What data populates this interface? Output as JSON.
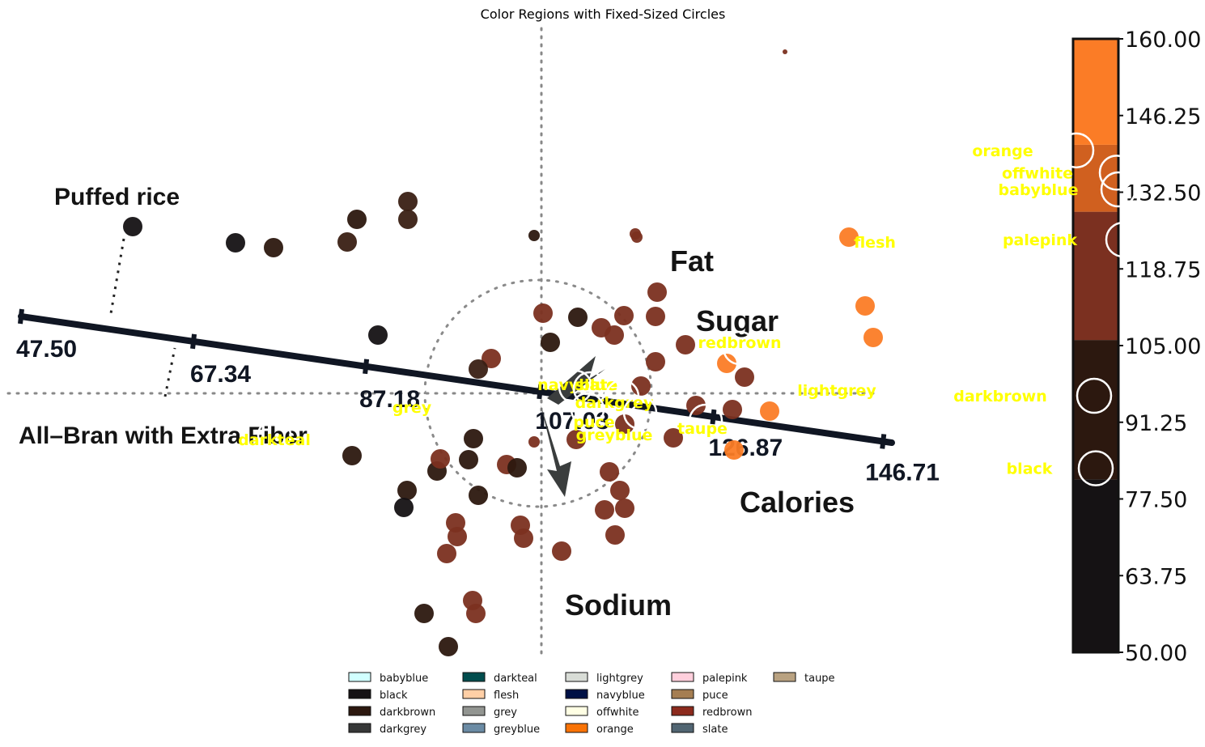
{
  "chart_data": {
    "type": "scatter",
    "title": "Color Regions with Fixed-Sized Circles",
    "background_image": {
      "description_labels": {
        "points": [
          "Puffed rice",
          "All–Bran with Extra Fiber"
        ],
        "variables": [
          "Fat",
          "Sugar",
          "Calories",
          "Sodium"
        ]
      },
      "calibrated_axis_ticks": [
        "47.50",
        "67.34",
        "87.18",
        "107.03",
        "126.87",
        "146.71"
      ],
      "colorbar": {
        "ticks": [
          "160.00",
          "146.25",
          "132.50",
          "118.75",
          "105.00",
          "91.25",
          "77.50",
          "63.75",
          "50.00"
        ],
        "range": [
          50,
          160
        ],
        "bands": [
          {
            "from": 50,
            "to": 81,
            "color": "#151214"
          },
          {
            "from": 81,
            "to": 106,
            "color": "#2c180f"
          },
          {
            "from": 106,
            "to": 129,
            "color": "#7b3020"
          },
          {
            "from": 129,
            "to": 141,
            "color": "#d0601f"
          },
          {
            "from": 141,
            "to": 160,
            "color": "#fb7c26"
          }
        ]
      },
      "colorbar_markers": [
        {
          "label": "orange",
          "value": 140
        },
        {
          "label": "offwhite",
          "value": 136
        },
        {
          "label": "babyblue",
          "value": 133
        },
        {
          "label": "palepink",
          "value": 124
        },
        {
          "label": "darkbrown",
          "value": 96
        },
        {
          "label": "black",
          "value": 83
        }
      ]
    },
    "scatter_points": [
      {
        "x": -505,
        "y": 206,
        "color": "#151214"
      },
      {
        "x": -378,
        "y": 186,
        "color": "#151214"
      },
      {
        "x": -331,
        "y": 180,
        "color": "#2c180f"
      },
      {
        "x": -228,
        "y": 215,
        "color": "#2c180f"
      },
      {
        "x": -240,
        "y": 187,
        "color": "#3a2014"
      },
      {
        "x": -165,
        "y": 237,
        "color": "#3a2014"
      },
      {
        "x": -165,
        "y": 215,
        "color": "#3a2014"
      },
      {
        "x": -9,
        "y": 195,
        "color": "#2c180f"
      },
      {
        "x": 116,
        "y": 197,
        "color": "#7b3020"
      },
      {
        "x": 118,
        "y": 193,
        "color": "#7b3020"
      },
      {
        "x": 143,
        "y": 125,
        "color": "#7b3020"
      },
      {
        "x": 380,
        "y": 193,
        "color": "#fb7c26"
      },
      {
        "x": 400,
        "y": 108,
        "color": "#fb7c26"
      },
      {
        "x": 410,
        "y": 69,
        "color": "#fb7c26"
      },
      {
        "x": -202,
        "y": 72,
        "color": "#151214"
      },
      {
        "x": 2,
        "y": 99,
        "color": "#7b3020"
      },
      {
        "x": 45,
        "y": 94,
        "color": "#2c180f"
      },
      {
        "x": 74,
        "y": 81,
        "color": "#7b3020"
      },
      {
        "x": 90,
        "y": 72,
        "color": "#7b3020"
      },
      {
        "x": 102,
        "y": 96,
        "color": "#7b3020"
      },
      {
        "x": 11,
        "y": 63,
        "color": "#2c180f"
      },
      {
        "x": -62,
        "y": 43,
        "color": "#7b3020"
      },
      {
        "x": -78,
        "y": 30,
        "color": "#3a2014"
      },
      {
        "x": 141,
        "y": 39,
        "color": "#7b3020"
      },
      {
        "x": 178,
        "y": 60,
        "color": "#7b3020"
      },
      {
        "x": 229,
        "y": 37,
        "color": "#fb7c26"
      },
      {
        "x": 251,
        "y": 20,
        "color": "#7b3020"
      },
      {
        "x": 123,
        "y": 9,
        "color": "#7b3020"
      },
      {
        "x": 191,
        "y": -15,
        "color": "#7b3020"
      },
      {
        "x": 236,
        "y": -20,
        "color": "#7b3020"
      },
      {
        "x": 282,
        "y": -22,
        "color": "#fb7c26"
      },
      {
        "x": 103,
        "y": -38,
        "color": "#7b3020"
      },
      {
        "x": 43,
        "y": -57,
        "color": "#7b3020"
      },
      {
        "x": 163,
        "y": -55,
        "color": "#7b3020"
      },
      {
        "x": 238,
        "y": -70,
        "color": "#fb7c26"
      },
      {
        "x": -84,
        "y": -56,
        "color": "#2c180f"
      },
      {
        "x": -90,
        "y": -82,
        "color": "#2c180f"
      },
      {
        "x": -234,
        "y": -77,
        "color": "#2c180f"
      },
      {
        "x": -129,
        "y": -96,
        "color": "#2c180f"
      },
      {
        "x": -43,
        "y": -88,
        "color": "#7b3020"
      },
      {
        "x": -30,
        "y": -92,
        "color": "#2c180f"
      },
      {
        "x": -125,
        "y": -81,
        "color": "#7b3020"
      },
      {
        "x": -166,
        "y": -120,
        "color": "#2c180f"
      },
      {
        "x": -170,
        "y": -141,
        "color": "#151214"
      },
      {
        "x": -78,
        "y": -126,
        "color": "#2c180f"
      },
      {
        "x": 97,
        "y": -120,
        "color": "#7b3020"
      },
      {
        "x": 103,
        "y": -142,
        "color": "#7b3020"
      },
      {
        "x": 78,
        "y": -144,
        "color": "#7b3020"
      },
      {
        "x": 91,
        "y": -175,
        "color": "#7b3020"
      },
      {
        "x": -106,
        "y": -160,
        "color": "#7b3020"
      },
      {
        "x": -104,
        "y": -177,
        "color": "#7b3020"
      },
      {
        "x": -26,
        "y": -163,
        "color": "#7b3020"
      },
      {
        "x": -22,
        "y": -179,
        "color": "#7b3020"
      },
      {
        "x": -117,
        "y": -198,
        "color": "#7b3020"
      },
      {
        "x": 25,
        "y": -195,
        "color": "#7b3020"
      },
      {
        "x": -145,
        "y": -272,
        "color": "#2c180f"
      },
      {
        "x": -85,
        "y": -256,
        "color": "#7b3020"
      },
      {
        "x": -81,
        "y": -272,
        "color": "#7b3020"
      },
      {
        "x": -115,
        "y": -313,
        "color": "#2c180f"
      },
      {
        "x": 301,
        "y": 422,
        "color": "#7b3020"
      },
      {
        "x": -9,
        "y": -60,
        "color": "#7b3020"
      },
      {
        "x": 141,
        "y": 95,
        "color": "#7b3020"
      },
      {
        "x": 84,
        "y": -97,
        "color": "#7b3020"
      }
    ],
    "region_markers": [
      {
        "label": "navyblue",
        "x": 42,
        "y": 8
      },
      {
        "label": "slate",
        "x": 60,
        "y": 6
      },
      {
        "label": "darkgrey",
        "x": 100,
        "y": -4
      },
      {
        "label": "puce",
        "x": 57,
        "y": -20
      },
      {
        "label": "greyblue",
        "x": 122,
        "y": -24
      },
      {
        "label": "taupe",
        "x": 203,
        "y": -34
      },
      {
        "label": "grey",
        "x": -130,
        "y": -10
      },
      {
        "label": "darkteal",
        "x": -330,
        "y": -52
      },
      {
        "label": "redbrown",
        "x": 245,
        "y": 56
      },
      {
        "label": "lightgrey",
        "x": 393,
        "y": 3
      },
      {
        "label": "flesh",
        "x": 420,
        "y": 184
      }
    ],
    "legend": {
      "placement": "bottom-center",
      "entries": [
        {
          "label": "babyblue",
          "color": "#d1ffff"
        },
        {
          "label": "black",
          "color": "#151214"
        },
        {
          "label": "darkbrown",
          "color": "#2c180f"
        },
        {
          "label": "darkgrey",
          "color": "#363737"
        },
        {
          "label": "darkteal",
          "color": "#014d4e"
        },
        {
          "label": "flesh",
          "color": "#ffcfa6"
        },
        {
          "label": "grey",
          "color": "#929591"
        },
        {
          "label": "greyblue",
          "color": "#6b8ba4"
        },
        {
          "label": "lightgrey",
          "color": "#d8dcd6"
        },
        {
          "label": "navyblue",
          "color": "#001146"
        },
        {
          "label": "offwhite",
          "color": "#ffffe4"
        },
        {
          "label": "orange",
          "color": "#f97306"
        },
        {
          "label": "palepink",
          "color": "#ffcfdc"
        },
        {
          "label": "puce",
          "color": "#a57e52"
        },
        {
          "label": "redbrown",
          "color": "#8c2a1d"
        },
        {
          "label": "slate",
          "color": "#516572"
        },
        {
          "label": "taupe",
          "color": "#b9a281"
        }
      ]
    }
  }
}
